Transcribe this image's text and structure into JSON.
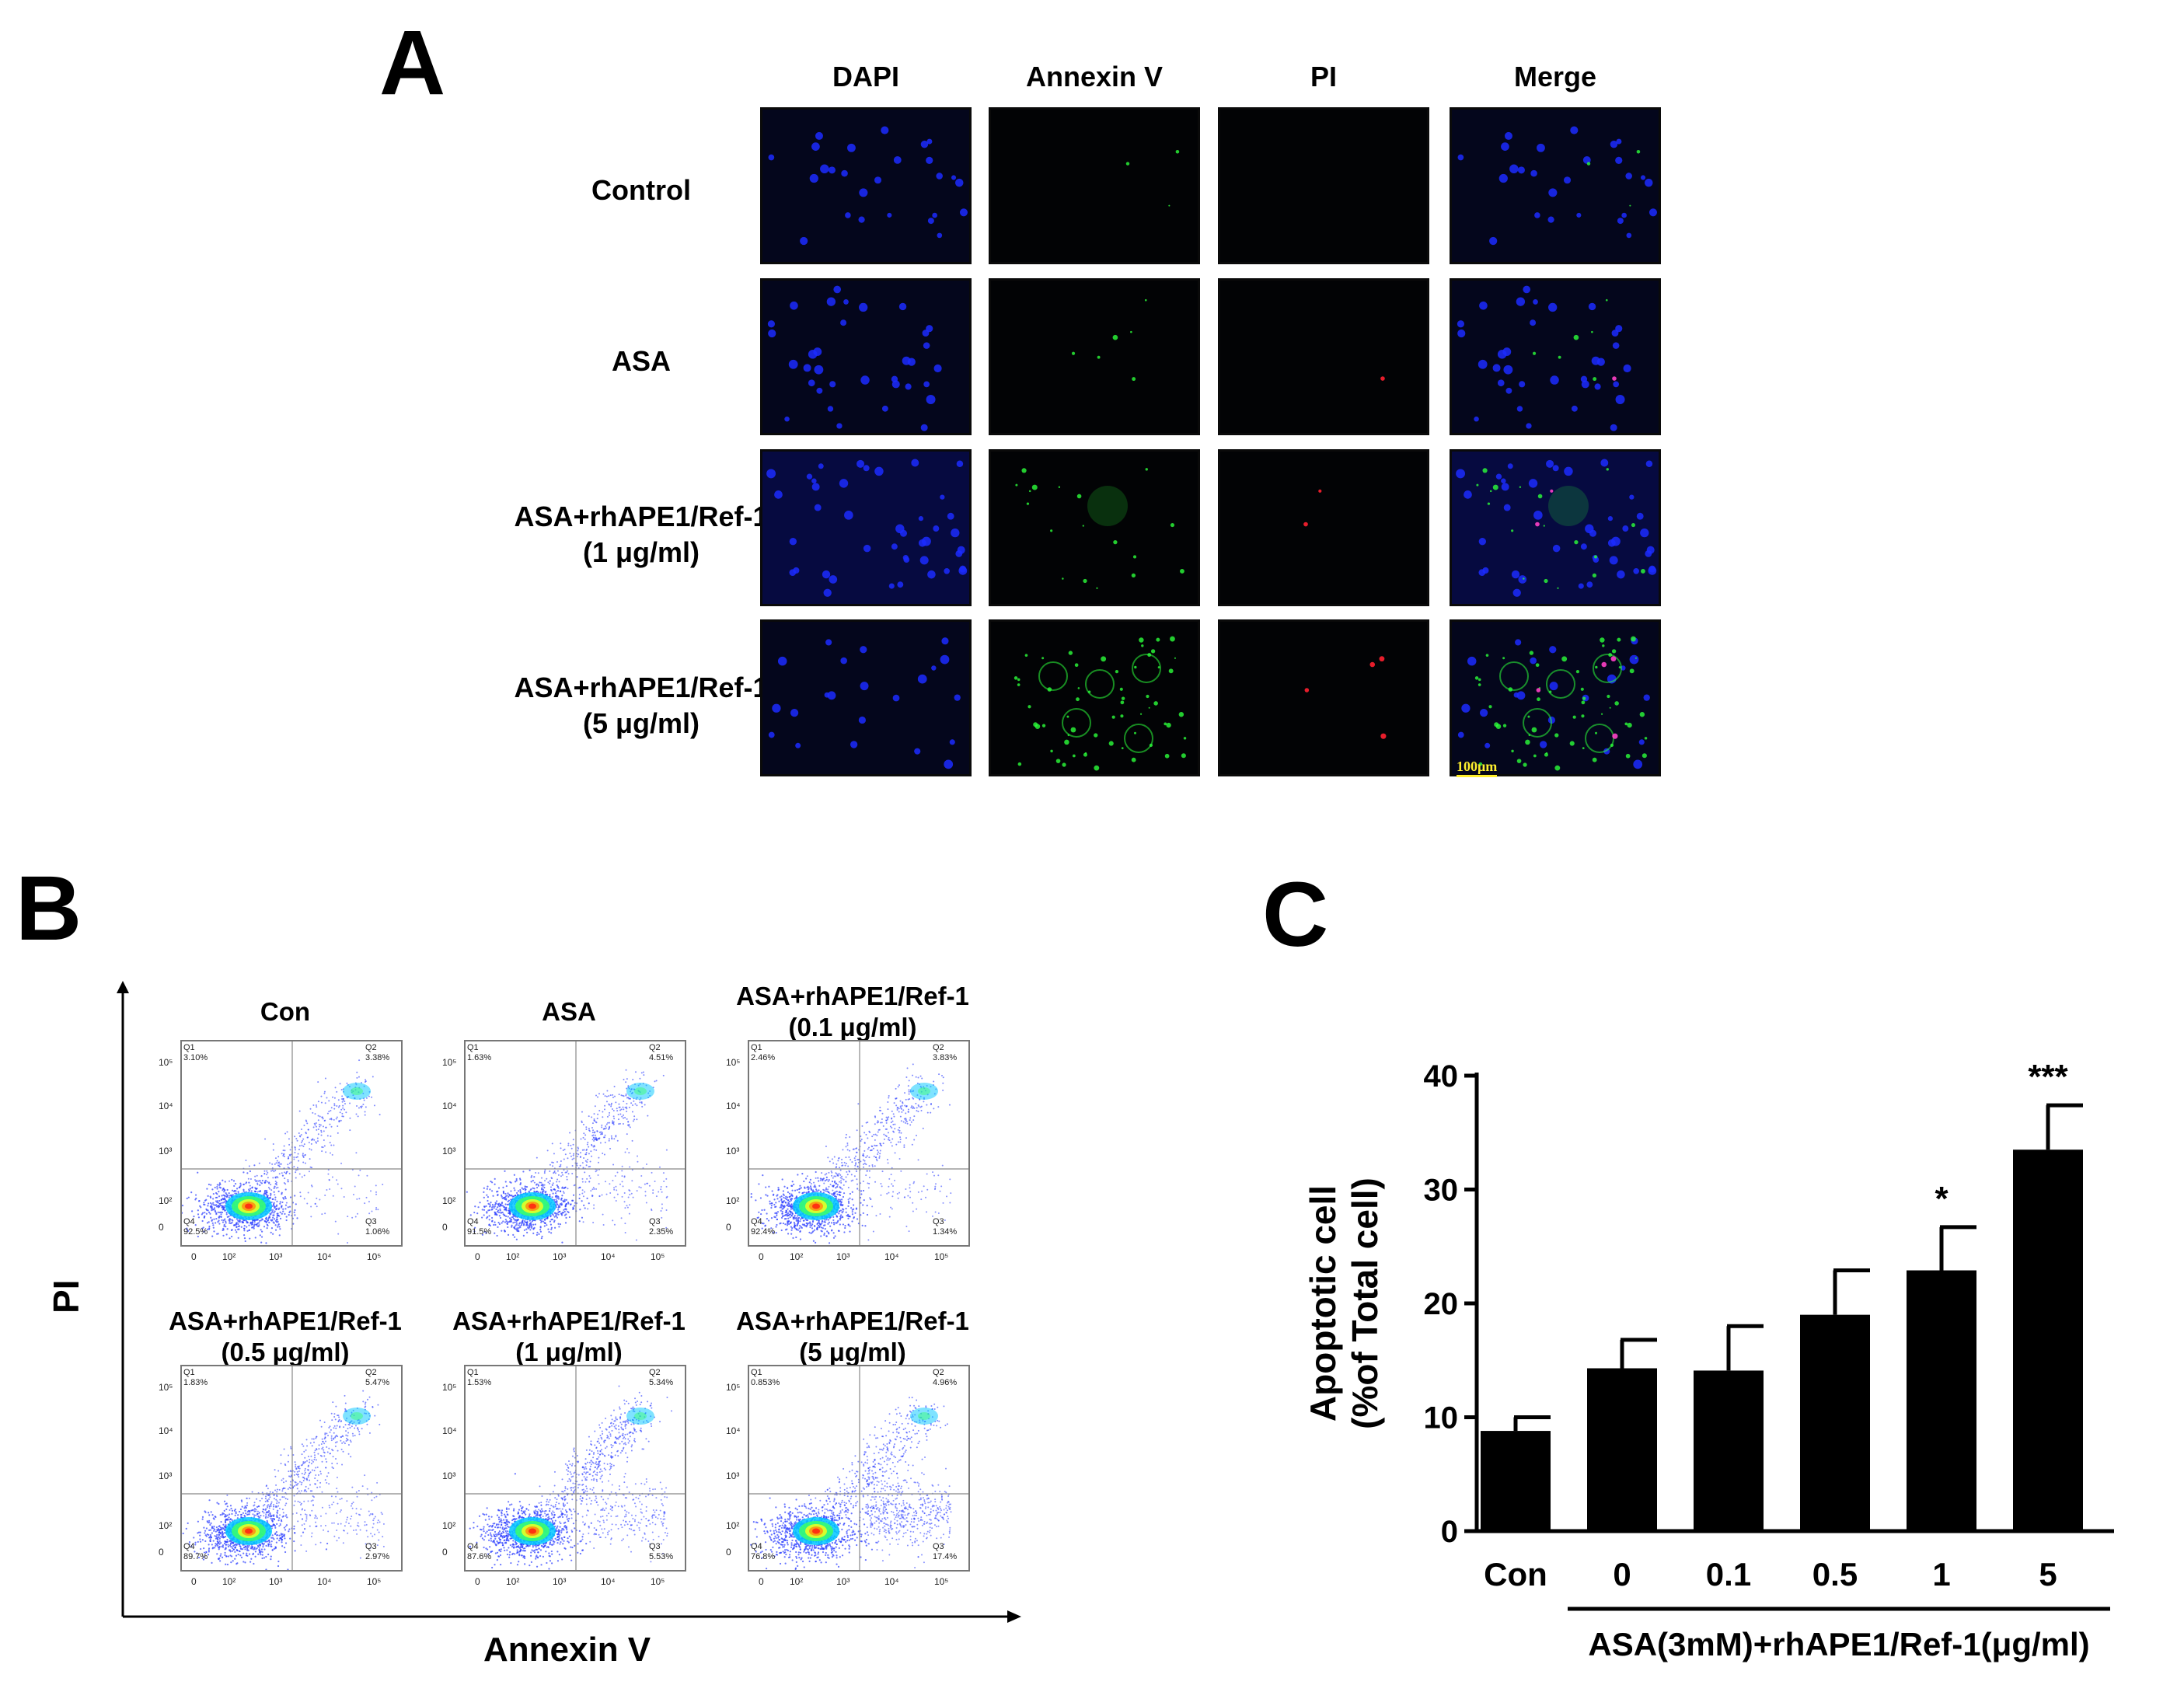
{
  "panelA": {
    "letter": "A",
    "columns": [
      "DAPI",
      "Annexin V",
      "PI",
      "Merge"
    ],
    "rows": [
      {
        "line1": "Control",
        "line2": ""
      },
      {
        "line1": "ASA",
        "line2": ""
      },
      {
        "line1": "ASA+rhAPE1/Ref-1",
        "line2": "(1 μg/ml)"
      },
      {
        "line1": "ASA+rhAPE1/Ref-1",
        "line2": "(5 μg/ml)"
      }
    ],
    "scale_bar": "100μm",
    "colors": {
      "dapi": "#1c2cff",
      "annexin": "#2cff3a",
      "pi": "#ff2030",
      "background": "#020305"
    }
  },
  "panelB": {
    "letter": "B",
    "ylabel": "PI",
    "xlabel": "Annexin V",
    "yticks": [
      "10⁵",
      "10⁴",
      "10³",
      "10²",
      "0"
    ],
    "xticks": [
      "0",
      "10²",
      "10³",
      "10⁴",
      "10⁵"
    ],
    "plots": [
      {
        "title1": "Con",
        "title2": "",
        "q1": "3.10%",
        "q2": "3.38%",
        "q3": "1.06%",
        "q4": "92.5%"
      },
      {
        "title1": "ASA",
        "title2": "",
        "q1": "1.63%",
        "q2": "4.51%",
        "q3": "2.35%",
        "q4": "91.5%"
      },
      {
        "title1": "ASA+rhAPE1/Ref-1",
        "title2": "(0.1 μg/ml)",
        "q1": "2.46%",
        "q2": "3.83%",
        "q3": "1.34%",
        "q4": "92.4%"
      },
      {
        "title1": "ASA+rhAPE1/Ref-1",
        "title2": "(0.5 μg/ml)",
        "q1": "1.83%",
        "q2": "5.47%",
        "q3": "2.97%",
        "q4": "89.7%"
      },
      {
        "title1": "ASA+rhAPE1/Ref-1",
        "title2": "(1 μg/ml)",
        "q1": "1.53%",
        "q2": "5.34%",
        "q3": "5.53%",
        "q4": "87.6%"
      },
      {
        "title1": "ASA+rhAPE1/Ref-1",
        "title2": "(5 μg/ml)",
        "q1": "0.853%",
        "q2": "4.96%",
        "q3": "17.4%",
        "q4": "76.8%"
      }
    ],
    "quadrant_names": [
      "Q1",
      "Q2",
      "Q3",
      "Q4"
    ]
  },
  "panelC": {
    "letter": "C"
  },
  "chart_data": {
    "type": "bar",
    "categories": [
      "Con",
      "0",
      "0.1",
      "0.5",
      "1",
      "5"
    ],
    "values": [
      8.8,
      14.3,
      14.1,
      19.0,
      22.9,
      33.5
    ],
    "errors": [
      1.2,
      2.5,
      3.9,
      3.9,
      3.8,
      3.9
    ],
    "significance": [
      "",
      "",
      "",
      "",
      "*",
      "***"
    ],
    "ylabel_line1": "Apoptotic cell",
    "ylabel_line2": "(%of Total cell)",
    "xlabel": "ASA(3mM)+rhAPE1/Ref-1(μg/ml)",
    "ylim": [
      0,
      40
    ],
    "yticks": [
      0,
      10,
      20,
      30,
      40
    ],
    "bar_color": "#000000"
  }
}
